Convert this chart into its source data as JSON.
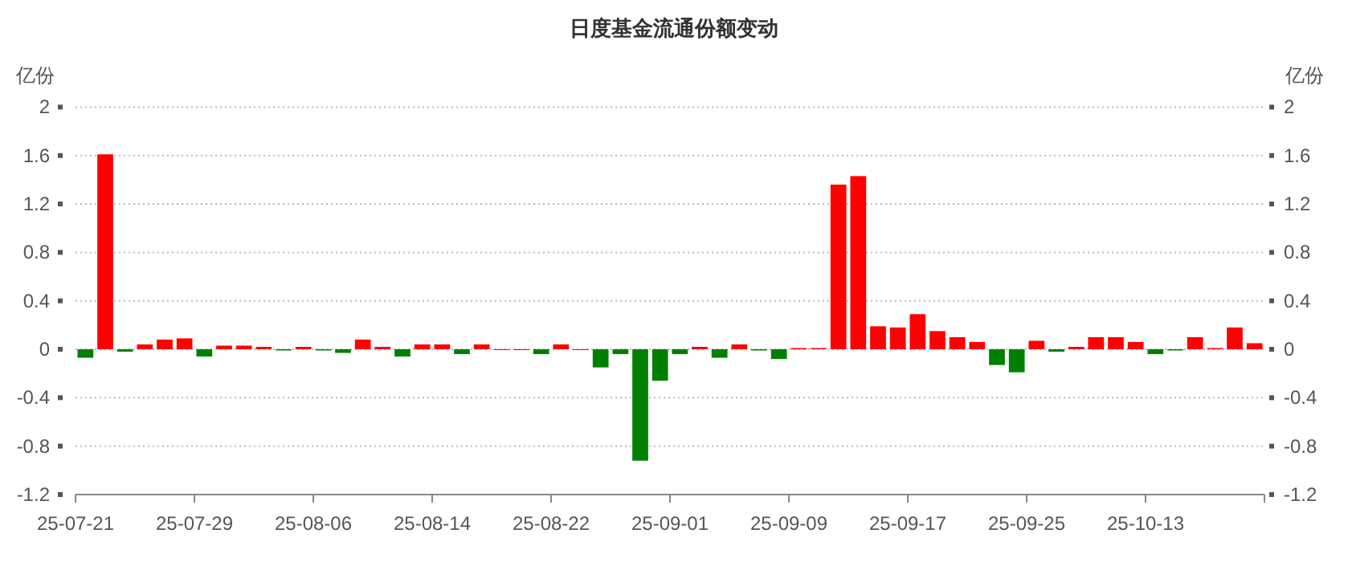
{
  "chart_data": {
    "type": "bar",
    "title": "日度基金流通份额变动",
    "ylabel": "亿份",
    "y2label": "亿份",
    "categories": [
      "25-07-21",
      null,
      null,
      null,
      null,
      null,
      "25-07-29",
      null,
      null,
      null,
      null,
      null,
      "25-08-06",
      null,
      null,
      null,
      null,
      null,
      "25-08-14",
      null,
      null,
      null,
      null,
      null,
      "25-08-22",
      null,
      null,
      null,
      null,
      null,
      "25-09-01",
      null,
      null,
      null,
      null,
      null,
      "25-09-09",
      null,
      null,
      null,
      null,
      null,
      "25-09-17",
      null,
      null,
      null,
      null,
      null,
      "25-09-25",
      null,
      null,
      null,
      null,
      null,
      "25-10-13",
      null,
      null,
      null,
      null,
      null
    ],
    "values": [
      -0.07,
      1.61,
      -0.02,
      0.04,
      0.08,
      0.09,
      -0.06,
      0.03,
      0.03,
      0.02,
      -0.01,
      0.02,
      -0.01,
      -0.03,
      0.08,
      0.02,
      -0.06,
      0.04,
      0.04,
      -0.04,
      0.04,
      0,
      0,
      -0.04,
      0.04,
      0,
      -0.15,
      -0.04,
      -0.92,
      -0.26,
      -0.04,
      0.02,
      -0.07,
      0.04,
      -0.01,
      -0.08,
      0.01,
      0.01,
      1.36,
      1.43,
      0.19,
      0.18,
      0.29,
      0.15,
      0.1,
      0.06,
      -0.13,
      -0.19,
      0.07,
      -0.02,
      0.02,
      0.1,
      0.1,
      0.06,
      -0.04,
      -0.01,
      0.1,
      0.01,
      0.18,
      0.05
    ],
    "colors": [
      "#008000",
      "#ff0000",
      "#008000",
      "#ff0000",
      "#ff0000",
      "#ff0000",
      "#008000",
      "#ff0000",
      "#ff0000",
      "#ff0000",
      "#008000",
      "#ff0000",
      "#008000",
      "#008000",
      "#ff0000",
      "#ff0000",
      "#008000",
      "#ff0000",
      "#ff0000",
      "#008000",
      "#ff0000",
      "#ff0000",
      "#ff0000",
      "#008000",
      "#ff0000",
      "#ff0000",
      "#008000",
      "#008000",
      "#008000",
      "#008000",
      "#008000",
      "#ff0000",
      "#008000",
      "#ff0000",
      "#008000",
      "#008000",
      "#ff0000",
      "#ff0000",
      "#ff0000",
      "#ff0000",
      "#ff0000",
      "#ff0000",
      "#ff0000",
      "#ff0000",
      "#ff0000",
      "#ff0000",
      "#008000",
      "#008000",
      "#ff0000",
      "#008000",
      "#ff0000",
      "#ff0000",
      "#ff0000",
      "#ff0000",
      "#008000",
      "#008000",
      "#ff0000",
      "#ff0000",
      "#ff0000",
      "#ff0000"
    ],
    "ylim": [
      -1.2,
      2
    ],
    "yticks": [
      -1.2,
      -0.8,
      -0.4,
      0,
      0.4,
      0.8,
      1.2,
      1.6,
      2
    ],
    "y2lim": [
      -1.2,
      2
    ],
    "y2ticks": [
      -1.2,
      -0.8,
      -0.4,
      0,
      0.4,
      0.8,
      1.2,
      1.6,
      2
    ],
    "grid": "y"
  }
}
